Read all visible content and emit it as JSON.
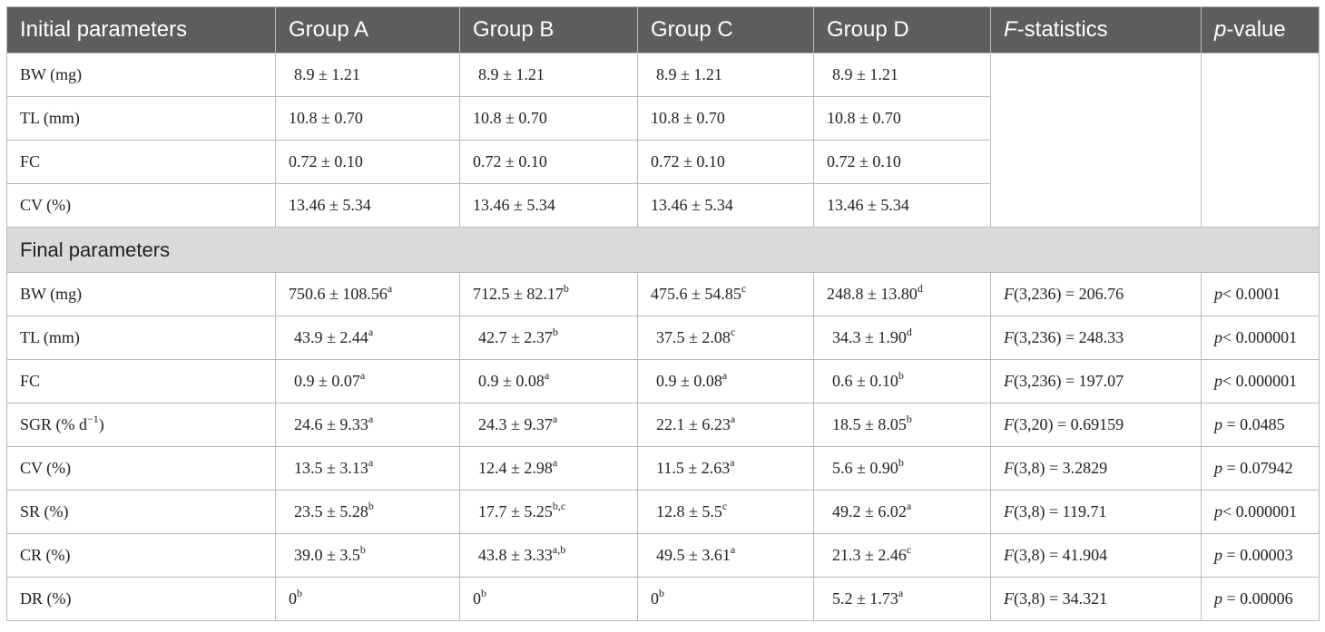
{
  "header": {
    "col0": "Initial parameters",
    "groupA": "Group A",
    "groupB": "Group B",
    "groupC": "Group C",
    "groupD": "Group D",
    "f_italic": "F",
    "f_rest": "-statistics",
    "p_italic": "p",
    "p_rest": "-value"
  },
  "initial": [
    {
      "param": "BW (mg)",
      "a": "8.9 ± 1.21",
      "b": "8.9 ± 1.21",
      "c": "8.9 ± 1.21",
      "d": "8.9 ± 1.21"
    },
    {
      "param": "TL (mm)",
      "a": "10.8 ± 0.70",
      "b": "10.8 ± 0.70",
      "c": "10.8 ± 0.70",
      "d": "10.8 ± 0.70"
    },
    {
      "param": "FC",
      "a": "0.72 ± 0.10",
      "b": "0.72 ± 0.10",
      "c": "0.72 ± 0.10",
      "d": "0.72 ± 0.10"
    },
    {
      "param": "CV (%)",
      "a": "13.46 ± 5.34",
      "b": "13.46 ± 5.34",
      "c": "13.46 ± 5.34",
      "d": "13.46 ± 5.34"
    }
  ],
  "final_label": "Final parameters",
  "final": [
    {
      "param": "BW (mg)",
      "param_sup": "",
      "a": "750.6 ± 108.56",
      "a_sup": "a",
      "b": "712.5 ± 82.17",
      "b_sup": "b",
      "c": "475.6 ± 54.85",
      "c_sup": "c",
      "d": "248.8 ± 13.80",
      "d_sup": "d",
      "f_stat": "F",
      "f_val": "(3,236) = 206.76",
      "p_stat": "p",
      "p_val": "< 0.0001"
    },
    {
      "param": "TL (mm)",
      "param_sup": "",
      "a": "43.9 ± 2.44",
      "a_sup": "a",
      "b": "42.7 ± 2.37",
      "b_sup": "b",
      "c": "37.5 ± 2.08",
      "c_sup": "c",
      "d": "34.3 ± 1.90",
      "d_sup": "d",
      "f_stat": "F",
      "f_val": "(3,236) = 248.33",
      "p_stat": "p",
      "p_val": "< 0.000001"
    },
    {
      "param": "FC",
      "param_sup": "",
      "a": "0.9 ± 0.07",
      "a_sup": "a",
      "b": "0.9 ± 0.08",
      "b_sup": "a",
      "c": "0.9 ± 0.08",
      "c_sup": "a",
      "d": "0.6 ± 0.10",
      "d_sup": "b",
      "f_stat": "F",
      "f_val": "(3,236) = 197.07",
      "p_stat": "p",
      "p_val": "< 0.000001"
    },
    {
      "param": "SGR (% d",
      "param_sup": "−1",
      "param_end": ")",
      "a": "24.6 ± 9.33",
      "a_sup": "a",
      "b": "24.3 ± 9.37",
      "b_sup": "a",
      "c": "22.1 ± 6.23",
      "c_sup": "a",
      "d": "18.5 ± 8.05",
      "d_sup": "b",
      "f_stat": "F",
      "f_val": "(3,20) = 0.69159",
      "p_stat": "p",
      "p_val": " = 0.0485"
    },
    {
      "param": "CV (%)",
      "param_sup": "",
      "a": "13.5 ± 3.13",
      "a_sup": "a",
      "b": "12.4 ± 2.98",
      "b_sup": "a",
      "c": "11.5 ± 2.63",
      "c_sup": "a",
      "d": "5.6 ± 0.90",
      "d_sup": "b",
      "f_stat": "F",
      "f_val": "(3,8) = 3.2829",
      "p_stat": "p",
      "p_val": " = 0.07942"
    },
    {
      "param": "SR (%)",
      "param_sup": "",
      "a": "23.5 ± 5.28",
      "a_sup": "b",
      "b": "17.7 ± 5.25",
      "b_sup": "b,c",
      "c": "12.8 ± 5.5",
      "c_sup": "c",
      "d": "49.2 ± 6.02",
      "d_sup": "a",
      "f_stat": "F",
      "f_val": "(3,8) = 119.71",
      "p_stat": "p",
      "p_val": "< 0.000001"
    },
    {
      "param": "CR (%)",
      "param_sup": "",
      "a": "39.0 ± 3.5",
      "a_sup": "b",
      "b": "43.8 ± 3.33",
      "b_sup": "a,b",
      "c": "49.5 ± 3.61",
      "c_sup": "a",
      "d": "21.3 ± 2.46",
      "d_sup": "c",
      "f_stat": "F",
      "f_val": "(3,8) = 41.904",
      "p_stat": "p",
      "p_val": " = 0.00003"
    },
    {
      "param": "DR (%)",
      "param_sup": "",
      "a": "0",
      "a_sup": "b",
      "b": "0",
      "b_sup": "b",
      "c": "0",
      "c_sup": "b",
      "d": "5.2 ± 1.73",
      "d_sup": "a",
      "f_stat": "F",
      "f_val": "(3,8) = 34.321",
      "p_stat": "p",
      "p_val": " = 0.00006"
    }
  ]
}
